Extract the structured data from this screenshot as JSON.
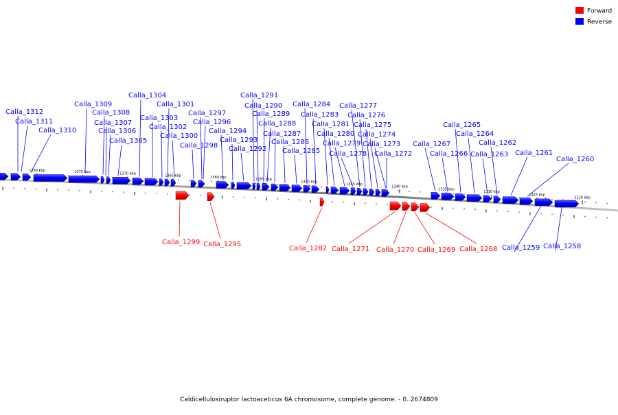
{
  "legend": [
    {
      "label": "Forward",
      "color": "#ff0000"
    },
    {
      "label": "Reverse",
      "color": "#0000ff"
    }
  ],
  "caption": "Caldicellulosiruptor lactoaceticus 6A chromosome, complete genome. - 0..2674809",
  "colors": {
    "forward": "#ff0000",
    "reverse": "#0000ff",
    "leader_forward": "#ff0000",
    "leader_reverse": "#0000ff",
    "backbone": "#888888"
  },
  "kbp_labels": [
    "1380 kbp",
    "1375 kbp",
    "1370 kbp",
    "1365 kbp",
    "1360 kbp",
    "1355 kbp",
    "1350 kbp",
    "1345 kbp",
    "1340 kbp",
    "1335 kbp",
    "1330 kbp",
    "1325 kbp",
    "1320 kbp"
  ],
  "genes": [
    {
      "name": "Calla_1312",
      "strand": "reverse"
    },
    {
      "name": "Calla_1311",
      "strand": "reverse"
    },
    {
      "name": "Calla_1310",
      "strand": "reverse"
    },
    {
      "name": "Calla_1309",
      "strand": "reverse"
    },
    {
      "name": "Calla_1308",
      "strand": "reverse"
    },
    {
      "name": "Calla_1307",
      "strand": "reverse"
    },
    {
      "name": "Calla_1306",
      "strand": "reverse"
    },
    {
      "name": "Calla_1305",
      "strand": "reverse"
    },
    {
      "name": "Calla_1304",
      "strand": "reverse"
    },
    {
      "name": "Calla_1303",
      "strand": "reverse"
    },
    {
      "name": "Calla_1302",
      "strand": "reverse"
    },
    {
      "name": "Calla_1301",
      "strand": "reverse"
    },
    {
      "name": "Calla_1300",
      "strand": "reverse"
    },
    {
      "name": "Calla_1299",
      "strand": "forward"
    },
    {
      "name": "Calla_1298",
      "strand": "reverse"
    },
    {
      "name": "Calla_1297",
      "strand": "reverse"
    },
    {
      "name": "Calla_1296",
      "strand": "reverse"
    },
    {
      "name": "Calla_1295",
      "strand": "forward"
    },
    {
      "name": "Calla_1294",
      "strand": "reverse"
    },
    {
      "name": "Calla_1293",
      "strand": "reverse"
    },
    {
      "name": "Calla_1292",
      "strand": "reverse"
    },
    {
      "name": "Calla_1291",
      "strand": "reverse"
    },
    {
      "name": "Calla_1290",
      "strand": "reverse"
    },
    {
      "name": "Calla_1289",
      "strand": "reverse"
    },
    {
      "name": "Calla_1288",
      "strand": "reverse"
    },
    {
      "name": "Calla_1287",
      "strand": "reverse"
    },
    {
      "name": "Calla_1286",
      "strand": "reverse"
    },
    {
      "name": "Calla_1285",
      "strand": "reverse"
    },
    {
      "name": "Calla_1284",
      "strand": "reverse"
    },
    {
      "name": "Calla_1283",
      "strand": "reverse"
    },
    {
      "name": "Calla_1282",
      "strand": "forward"
    },
    {
      "name": "Calla_1281",
      "strand": "reverse"
    },
    {
      "name": "Calla_1280",
      "strand": "reverse"
    },
    {
      "name": "Calla_1279",
      "strand": "reverse"
    },
    {
      "name": "Calla_1278",
      "strand": "reverse"
    },
    {
      "name": "Calla_1277",
      "strand": "reverse"
    },
    {
      "name": "Calla_1276",
      "strand": "reverse"
    },
    {
      "name": "Calla_1275",
      "strand": "reverse"
    },
    {
      "name": "Calla_1274",
      "strand": "reverse"
    },
    {
      "name": "Calla_1273",
      "strand": "reverse"
    },
    {
      "name": "Calla_1272",
      "strand": "reverse"
    },
    {
      "name": "Calla_1271",
      "strand": "forward"
    },
    {
      "name": "Calla_1270",
      "strand": "forward"
    },
    {
      "name": "Calla_1269",
      "strand": "forward"
    },
    {
      "name": "Calla_1268",
      "strand": "forward"
    },
    {
      "name": "Calla_1267",
      "strand": "reverse"
    },
    {
      "name": "Calla_1266",
      "strand": "reverse"
    },
    {
      "name": "Calla_1265",
      "strand": "reverse"
    },
    {
      "name": "Calla_1264",
      "strand": "reverse"
    },
    {
      "name": "Calla_1263",
      "strand": "reverse"
    },
    {
      "name": "Calla_1262",
      "strand": "reverse"
    },
    {
      "name": "Calla_1261",
      "strand": "reverse"
    },
    {
      "name": "Calla_1260",
      "strand": "reverse"
    },
    {
      "name": "Calla_1259",
      "strand": "reverse"
    },
    {
      "name": "Calla_1258",
      "strand": "reverse"
    }
  ]
}
